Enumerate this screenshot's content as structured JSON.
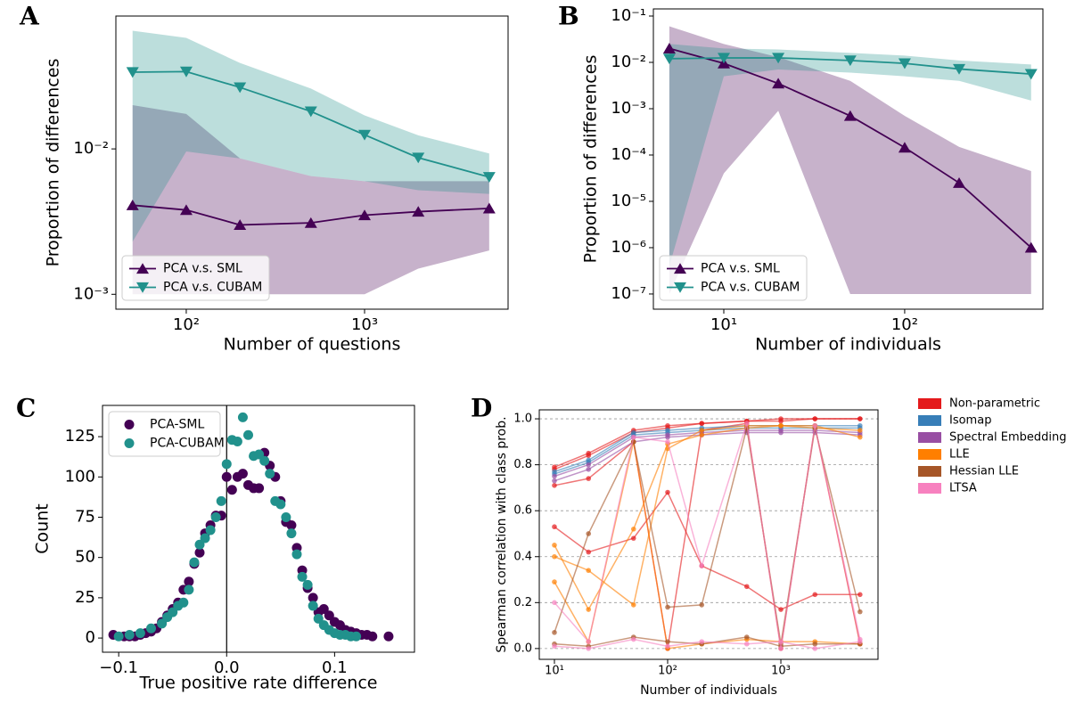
{
  "chart_data": [
    {
      "type": "line",
      "label": "A",
      "xlabel": "Number of questions",
      "ylabel": "Proportion of differences",
      "xscale": "log",
      "yscale": "log",
      "xlim": [
        40.3,
        6380
      ],
      "ylim": [
        0.00079,
        0.082
      ],
      "xticks": [
        {
          "value": 100,
          "label": "10²"
        },
        {
          "value": 1000,
          "label": "10³"
        }
      ],
      "yticks": [
        {
          "value": 0.001,
          "label": "10⁻³"
        },
        {
          "value": 0.01,
          "label": "10⁻²"
        }
      ],
      "legend": "lower left",
      "x": [
        50,
        100,
        200,
        500,
        1000,
        2000,
        5000
      ],
      "series": [
        {
          "name": "PCA v.s. SML",
          "color": "#440154",
          "marker": "triangle-up",
          "values": [
            0.0041,
            0.0038,
            0.003,
            0.0031,
            0.0035,
            0.0037,
            0.0039
          ],
          "lower": [
            0.001,
            0.001,
            0.001,
            0.001,
            0.001,
            0.0015,
            0.002
          ],
          "upper": [
            0.02,
            0.0174,
            0.0086,
            0.0065,
            0.006,
            0.006,
            0.006
          ]
        },
        {
          "name": "PCA v.s. CUBAM",
          "color": "#21918c",
          "marker": "triangle-down",
          "values": [
            0.0337,
            0.034,
            0.0265,
            0.0181,
            0.0125,
            0.0087,
            0.0064
          ],
          "lower": [
            0.0023,
            0.0096,
            0.0086,
            0.0065,
            0.006,
            0.0052,
            0.0049
          ],
          "upper": [
            0.065,
            0.058,
            0.039,
            0.026,
            0.017,
            0.0124,
            0.0093
          ]
        }
      ]
    },
    {
      "type": "line",
      "label": "B",
      "xlabel": "Number of individuals",
      "ylabel": "Proportion of differences",
      "xscale": "log",
      "yscale": "log",
      "xlim": [
        4.08,
        581
      ],
      "ylim": [
        4.7e-08,
        0.1426
      ],
      "xticks": [
        {
          "value": 10,
          "label": "10¹"
        },
        {
          "value": 100,
          "label": "10²"
        }
      ],
      "yticks": [
        {
          "value": 1e-07,
          "label": "10⁻⁷"
        },
        {
          "value": 1e-06,
          "label": "10⁻⁶"
        },
        {
          "value": 1e-05,
          "label": "10⁻⁵"
        },
        {
          "value": 0.0001,
          "label": "10⁻⁴"
        },
        {
          "value": 0.001,
          "label": "10⁻³"
        },
        {
          "value": 0.01,
          "label": "10⁻²"
        },
        {
          "value": 0.1,
          "label": "10⁻¹"
        }
      ],
      "legend": "lower left",
      "x": [
        5,
        10,
        20,
        50,
        100,
        200,
        500
      ],
      "series": [
        {
          "name": "PCA v.s. SML",
          "color": "#440154",
          "marker": "triangle-up",
          "values": [
            0.02,
            0.0095,
            0.0035,
            0.0007,
            0.000145,
            2.5e-05,
            1e-06
          ],
          "lower": [
            1e-07,
            4e-05,
            0.0009,
            1e-07,
            1e-07,
            1e-07,
            1e-07
          ],
          "upper": [
            0.06,
            0.025,
            0.013,
            0.004,
            0.0007,
            0.00015,
            4.5e-05
          ]
        },
        {
          "name": "PCA v.s. CUBAM",
          "color": "#21918c",
          "marker": "triangle-down",
          "values": [
            0.012,
            0.0125,
            0.0125,
            0.011,
            0.0095,
            0.0072,
            0.0056
          ],
          "lower": [
            4e-07,
            0.005,
            0.007,
            0.006,
            0.005,
            0.004,
            0.0015
          ],
          "upper": [
            0.025,
            0.02,
            0.019,
            0.016,
            0.014,
            0.011,
            0.009
          ]
        }
      ]
    },
    {
      "type": "scatter",
      "label": "C",
      "xlabel": "True positive rate difference",
      "ylabel": "Count",
      "xlim": [
        -0.115,
        0.174
      ],
      "ylim": [
        -8.8,
        144.4
      ],
      "vline": 0,
      "xticks": [
        {
          "value": -0.1,
          "label": "−0.1"
        },
        {
          "value": 0,
          "label": "0.0"
        },
        {
          "value": 0.1,
          "label": "0.1"
        }
      ],
      "yticks": [
        0,
        25,
        50,
        75,
        100,
        125
      ],
      "legend": "upper left",
      "series": [
        {
          "name": "PCA-SML",
          "color": "#440154",
          "x": [
            -0.105,
            -0.095,
            -0.09,
            -0.085,
            -0.08,
            -0.075,
            -0.07,
            -0.065,
            -0.06,
            -0.055,
            -0.05,
            -0.045,
            -0.04,
            -0.035,
            -0.03,
            -0.025,
            -0.02,
            -0.015,
            -0.01,
            -0.005,
            0,
            0.005,
            0.01,
            0.015,
            0.02,
            0.025,
            0.03,
            0.035,
            0.04,
            0.045,
            0.05,
            0.055,
            0.06,
            0.065,
            0.07,
            0.075,
            0.08,
            0.085,
            0.09,
            0.095,
            0.1,
            0.105,
            0.11,
            0.115,
            0.12,
            0.125,
            0.13,
            0.135,
            0.15
          ],
          "values": [
            2,
            1,
            1,
            1,
            2,
            3,
            4,
            6,
            10,
            14,
            18,
            22,
            30,
            35,
            46,
            53,
            65,
            70,
            76,
            76,
            100,
            92,
            100,
            102,
            95,
            93,
            93,
            115,
            107,
            100,
            85,
            72,
            70,
            56,
            42,
            31,
            25,
            16,
            18,
            14,
            10,
            8,
            5,
            4,
            3,
            2,
            2,
            1,
            1
          ]
        },
        {
          "name": "PCA-CUBAM",
          "color": "#21918c",
          "x": [
            -0.1,
            -0.09,
            -0.08,
            -0.07,
            -0.06,
            -0.055,
            -0.05,
            -0.045,
            -0.04,
            -0.035,
            -0.03,
            -0.025,
            -0.02,
            -0.015,
            -0.01,
            -0.005,
            0,
            0.005,
            0.01,
            0.015,
            0.02,
            0.025,
            0.03,
            0.035,
            0.04,
            0.045,
            0.05,
            0.055,
            0.06,
            0.065,
            0.07,
            0.075,
            0.08,
            0.085,
            0.09,
            0.095,
            0.1,
            0.105,
            0.11,
            0.115,
            0.12
          ],
          "values": [
            1,
            2,
            3,
            6,
            9,
            13,
            16,
            20,
            22,
            30,
            47,
            58,
            62,
            67,
            75,
            85,
            108,
            123,
            122,
            137,
            126,
            113,
            114,
            110,
            102,
            85,
            83,
            75,
            65,
            52,
            38,
            33,
            20,
            12,
            8,
            5,
            3,
            2,
            2,
            1,
            1
          ]
        }
      ]
    },
    {
      "type": "line",
      "label": "D",
      "xlabel": "Number of individuals",
      "ylabel": "Spearman correlation with class prob.",
      "xscale": "log",
      "xlim": [
        7.35,
        7210
      ],
      "ylim": [
        -0.047,
        1.039
      ],
      "grid": true,
      "xticks": [
        {
          "value": 10,
          "label": "10¹"
        },
        {
          "value": 100,
          "label": "10²"
        },
        {
          "value": 1000,
          "label": "10³"
        }
      ],
      "yticks": [
        {
          "value": 0,
          "label": "0.0"
        },
        {
          "value": 0.2,
          "label": "0.2"
        },
        {
          "value": 0.4,
          "label": "0.4"
        },
        {
          "value": 0.6,
          "label": "0.6"
        },
        {
          "value": 0.8,
          "label": "0.8"
        },
        {
          "value": 1,
          "label": "1.0"
        }
      ],
      "legend": "outside right",
      "x": [
        10,
        20,
        50,
        100,
        200,
        500,
        1000,
        2000,
        5000
      ],
      "series": [
        {
          "name": "Non-parametric",
          "color": "#e41a1c",
          "runs": [
            [
              0.79,
              0.85,
              0.95,
              0.97,
              0.98,
              0.99,
              1.0,
              1.0,
              1.0
            ],
            [
              0.78,
              0.84,
              0.94,
              0.96,
              0.98,
              0.99,
              0.99,
              1.0,
              1.0
            ],
            [
              0.53,
              0.42,
              0.48,
              0.68,
              0.36,
              0.27,
              0.17,
              0.235,
              0.235
            ],
            [
              0.71,
              0.74,
              0.9,
              0.0,
              0.95,
              0.98,
              0.0,
              0.97,
              0.02
            ]
          ]
        },
        {
          "name": "Isomap",
          "color": "#377eb8",
          "runs": [
            [
              0.77,
              0.82,
              0.94,
              0.95,
              0.96,
              0.97,
              0.97,
              0.97,
              0.97
            ],
            [
              0.76,
              0.81,
              0.93,
              0.94,
              0.95,
              0.96,
              0.96,
              0.96,
              0.96
            ]
          ]
        },
        {
          "name": "Spectral Embedding",
          "color": "#984ea3",
          "runs": [
            [
              0.75,
              0.8,
              0.92,
              0.93,
              0.94,
              0.95,
              0.95,
              0.95,
              0.94
            ],
            [
              0.73,
              0.78,
              0.9,
              0.92,
              0.93,
              0.94,
              0.94,
              0.94,
              0.93
            ]
          ]
        },
        {
          "name": "LLE",
          "color": "#ff7f00",
          "runs": [
            [
              0.45,
              0.17,
              0.52,
              0.89,
              0.93,
              0.96,
              0.97,
              0.97,
              0.92
            ],
            [
              0.4,
              0.34,
              0.19,
              0.87,
              0.95,
              0.97,
              0.97,
              0.96,
              0.95
            ],
            [
              0.29,
              0.03,
              0.9,
              0.0,
              0.02,
              0.04,
              0.03,
              0.03,
              0.02
            ]
          ]
        },
        {
          "name": "Hessian LLE",
          "color": "#a65628",
          "runs": [
            [
              0.07,
              0.5,
              0.9,
              0.18,
              0.19,
              0.96,
              0.02,
              0.96,
              0.16
            ],
            [
              0.02,
              0.01,
              0.05,
              0.03,
              0.02,
              0.05,
              0.01,
              0.02,
              0.02
            ]
          ]
        },
        {
          "name": "LTSA",
          "color": "#f781bf",
          "runs": [
            [
              0.2,
              0.03,
              0.92,
              0.9,
              0.36,
              0.98,
              0.0,
              0.97,
              0.04
            ],
            [
              0.01,
              0.0,
              0.04,
              0.01,
              0.03,
              0.02,
              0.03,
              0.0,
              0.03
            ]
          ]
        }
      ]
    }
  ]
}
